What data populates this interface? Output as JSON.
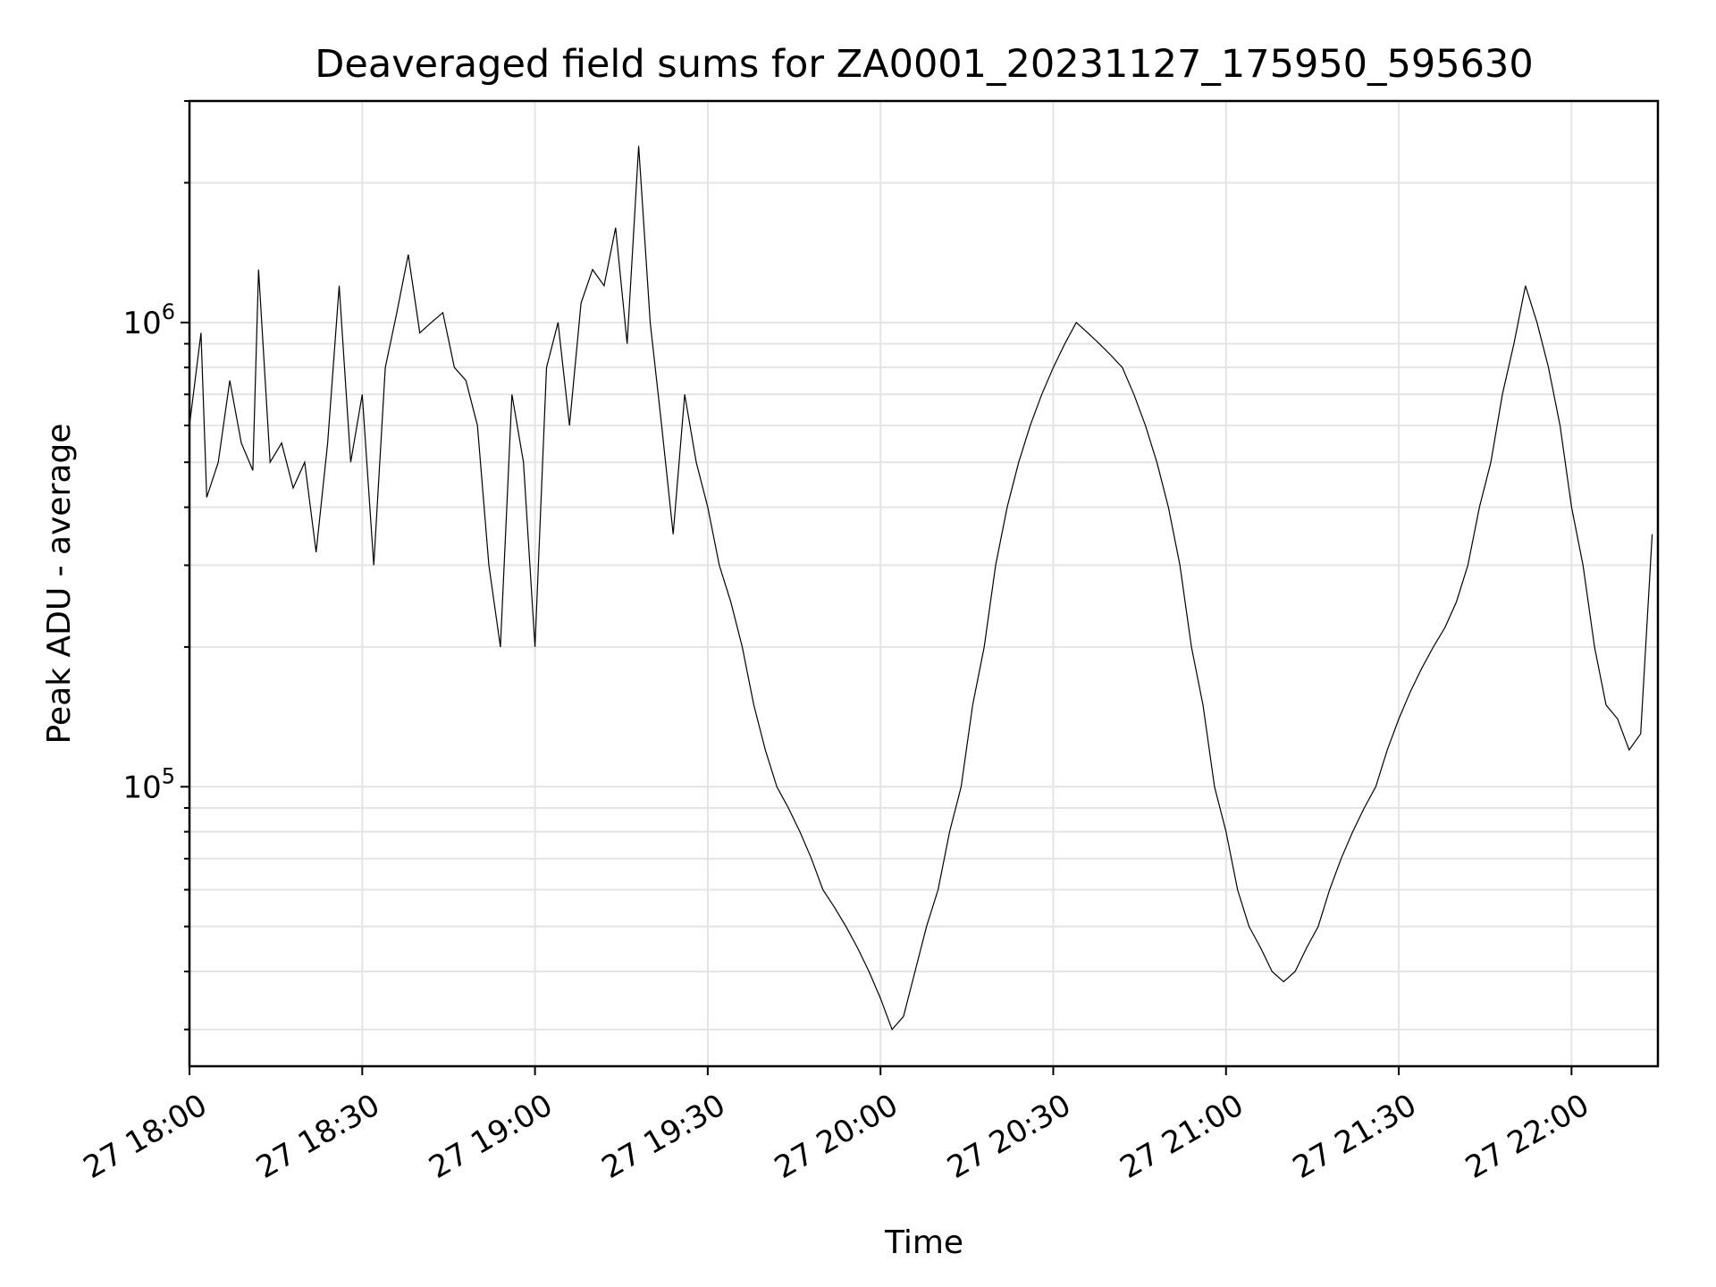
{
  "chart_data": {
    "type": "line",
    "title": "Deaveraged field sums for ZA0001_20231127_175950_595630",
    "xlabel": "Time",
    "ylabel": "Peak ADU - average",
    "y_scale": "log",
    "grid": true,
    "xlim": [
      "27 18:00",
      "27 22:15"
    ],
    "ylim": [
      25000,
      3000000
    ],
    "x_ticks": [
      "27 18:00",
      "27 18:30",
      "27 19:00",
      "27 19:30",
      "27 20:00",
      "27 20:30",
      "27 21:00",
      "27 21:30",
      "27 22:00"
    ],
    "y_ticks": [
      {
        "base": "10",
        "exp": "5",
        "value": 100000
      },
      {
        "base": "10",
        "exp": "6",
        "value": 1000000
      }
    ],
    "series": [
      {
        "color": "#000000",
        "x_start": "27 18:00",
        "x_end": "27 22:15",
        "anchors": [
          [
            "27 18:00",
            600000
          ],
          [
            "27 18:02",
            950000
          ],
          [
            "27 18:03",
            420000
          ],
          [
            "27 18:05",
            500000
          ],
          [
            "27 18:07",
            750000
          ],
          [
            "27 18:09",
            550000
          ],
          [
            "27 18:11",
            480000
          ],
          [
            "27 18:12",
            1300000
          ],
          [
            "27 18:14",
            500000
          ],
          [
            "27 18:16",
            550000
          ],
          [
            "27 18:18",
            440000
          ],
          [
            "27 18:20",
            500000
          ],
          [
            "27 18:22",
            320000
          ],
          [
            "27 18:24",
            550000
          ],
          [
            "27 18:26",
            1200000
          ],
          [
            "27 18:28",
            500000
          ],
          [
            "27 18:30",
            700000
          ],
          [
            "27 18:32",
            300000
          ],
          [
            "27 18:34",
            800000
          ],
          [
            "27 18:36",
            1050000
          ],
          [
            "27 18:38",
            1400000
          ],
          [
            "27 18:40",
            950000
          ],
          [
            "27 18:42",
            1000000
          ],
          [
            "27 18:44",
            1050000
          ],
          [
            "27 18:46",
            800000
          ],
          [
            "27 18:48",
            750000
          ],
          [
            "27 18:50",
            600000
          ],
          [
            "27 18:52",
            300000
          ],
          [
            "27 18:54",
            200000
          ],
          [
            "27 18:56",
            700000
          ],
          [
            "27 18:58",
            500000
          ],
          [
            "27 19:00",
            200000
          ],
          [
            "27 19:02",
            800000
          ],
          [
            "27 19:04",
            1000000
          ],
          [
            "27 19:06",
            600000
          ],
          [
            "27 19:08",
            1100000
          ],
          [
            "27 19:10",
            1300000
          ],
          [
            "27 19:12",
            1200000
          ],
          [
            "27 19:14",
            1600000
          ],
          [
            "27 19:16",
            900000
          ],
          [
            "27 19:18",
            2400000
          ],
          [
            "27 19:20",
            1000000
          ],
          [
            "27 19:22",
            600000
          ],
          [
            "27 19:24",
            350000
          ],
          [
            "27 19:26",
            700000
          ],
          [
            "27 19:28",
            500000
          ],
          [
            "27 19:30",
            400000
          ],
          [
            "27 19:32",
            300000
          ],
          [
            "27 19:34",
            250000
          ],
          [
            "27 19:36",
            200000
          ],
          [
            "27 19:38",
            150000
          ],
          [
            "27 19:40",
            120000
          ],
          [
            "27 19:42",
            100000
          ],
          [
            "27 19:44",
            90000
          ],
          [
            "27 19:46",
            80000
          ],
          [
            "27 19:48",
            70000
          ],
          [
            "27 19:50",
            60000
          ],
          [
            "27 19:52",
            55000
          ],
          [
            "27 19:54",
            50000
          ],
          [
            "27 19:56",
            45000
          ],
          [
            "27 19:58",
            40000
          ],
          [
            "27 20:00",
            35000
          ],
          [
            "27 20:02",
            30000
          ],
          [
            "27 20:04",
            32000
          ],
          [
            "27 20:06",
            40000
          ],
          [
            "27 20:08",
            50000
          ],
          [
            "27 20:10",
            60000
          ],
          [
            "27 20:12",
            80000
          ],
          [
            "27 20:14",
            100000
          ],
          [
            "27 20:16",
            150000
          ],
          [
            "27 20:18",
            200000
          ],
          [
            "27 20:20",
            300000
          ],
          [
            "27 20:22",
            400000
          ],
          [
            "27 20:24",
            500000
          ],
          [
            "27 20:26",
            600000
          ],
          [
            "27 20:28",
            700000
          ],
          [
            "27 20:30",
            800000
          ],
          [
            "27 20:32",
            900000
          ],
          [
            "27 20:34",
            1000000
          ],
          [
            "27 20:36",
            950000
          ],
          [
            "27 20:38",
            900000
          ],
          [
            "27 20:40",
            850000
          ],
          [
            "27 20:42",
            800000
          ],
          [
            "27 20:44",
            700000
          ],
          [
            "27 20:46",
            600000
          ],
          [
            "27 20:48",
            500000
          ],
          [
            "27 20:50",
            400000
          ],
          [
            "27 20:52",
            300000
          ],
          [
            "27 20:54",
            200000
          ],
          [
            "27 20:56",
            150000
          ],
          [
            "27 20:58",
            100000
          ],
          [
            "27 21:00",
            80000
          ],
          [
            "27 21:02",
            60000
          ],
          [
            "27 21:04",
            50000
          ],
          [
            "27 21:06",
            45000
          ],
          [
            "27 21:08",
            40000
          ],
          [
            "27 21:10",
            38000
          ],
          [
            "27 21:12",
            40000
          ],
          [
            "27 21:14",
            45000
          ],
          [
            "27 21:16",
            50000
          ],
          [
            "27 21:18",
            60000
          ],
          [
            "27 21:20",
            70000
          ],
          [
            "27 21:22",
            80000
          ],
          [
            "27 21:24",
            90000
          ],
          [
            "27 21:26",
            100000
          ],
          [
            "27 21:28",
            120000
          ],
          [
            "27 21:30",
            140000
          ],
          [
            "27 21:32",
            160000
          ],
          [
            "27 21:34",
            180000
          ],
          [
            "27 21:36",
            200000
          ],
          [
            "27 21:38",
            220000
          ],
          [
            "27 21:40",
            250000
          ],
          [
            "27 21:42",
            300000
          ],
          [
            "27 21:44",
            400000
          ],
          [
            "27 21:46",
            500000
          ],
          [
            "27 21:48",
            700000
          ],
          [
            "27 21:50",
            900000
          ],
          [
            "27 21:52",
            1200000
          ],
          [
            "27 21:54",
            1000000
          ],
          [
            "27 21:56",
            800000
          ],
          [
            "27 21:58",
            600000
          ],
          [
            "27 22:00",
            400000
          ],
          [
            "27 22:02",
            300000
          ],
          [
            "27 22:04",
            200000
          ],
          [
            "27 22:06",
            150000
          ],
          [
            "27 22:08",
            140000
          ],
          [
            "27 22:10",
            120000
          ],
          [
            "27 22:12",
            130000
          ],
          [
            "27 22:14",
            350000
          ]
        ]
      }
    ]
  }
}
